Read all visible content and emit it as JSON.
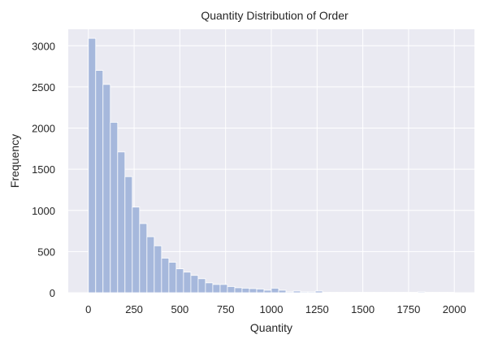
{
  "chart_data": {
    "type": "bar",
    "title": "Quantity Distribution of Order",
    "xlabel": "Quantity",
    "ylabel": "Frequency",
    "xlim": [
      -110,
      2110
    ],
    "ylim": [
      0,
      3200
    ],
    "x_ticks": [
      0,
      250,
      500,
      750,
      1000,
      1250,
      1500,
      1750,
      2000
    ],
    "y_ticks": [
      0,
      500,
      1000,
      1500,
      2000,
      2500,
      3000
    ],
    "grid": true,
    "background": "#eaeaf2",
    "bar_color": "#a6b8dc",
    "grid_color": "#ffffff",
    "bin_width": 40,
    "bins_start": [
      0,
      40,
      80,
      120,
      160,
      200,
      240,
      280,
      320,
      360,
      400,
      440,
      480,
      520,
      560,
      600,
      640,
      680,
      720,
      760,
      800,
      840,
      880,
      920,
      960,
      1000,
      1040,
      1080,
      1120,
      1160,
      1200,
      1240,
      1280,
      1320,
      1360,
      1400,
      1440,
      1480,
      1520,
      1560,
      1600,
      1640,
      1680,
      1720,
      1760,
      1800,
      1840,
      1880,
      1920,
      1960
    ],
    "values": [
      3090,
      2700,
      2530,
      2070,
      1710,
      1410,
      1040,
      840,
      680,
      570,
      420,
      370,
      290,
      250,
      210,
      170,
      120,
      100,
      100,
      75,
      60,
      55,
      50,
      45,
      30,
      55,
      30,
      10,
      20,
      10,
      10,
      20,
      5,
      5,
      5,
      5,
      5,
      5,
      5,
      5,
      5,
      5,
      5,
      5,
      5,
      10,
      5,
      5,
      5,
      5
    ]
  }
}
